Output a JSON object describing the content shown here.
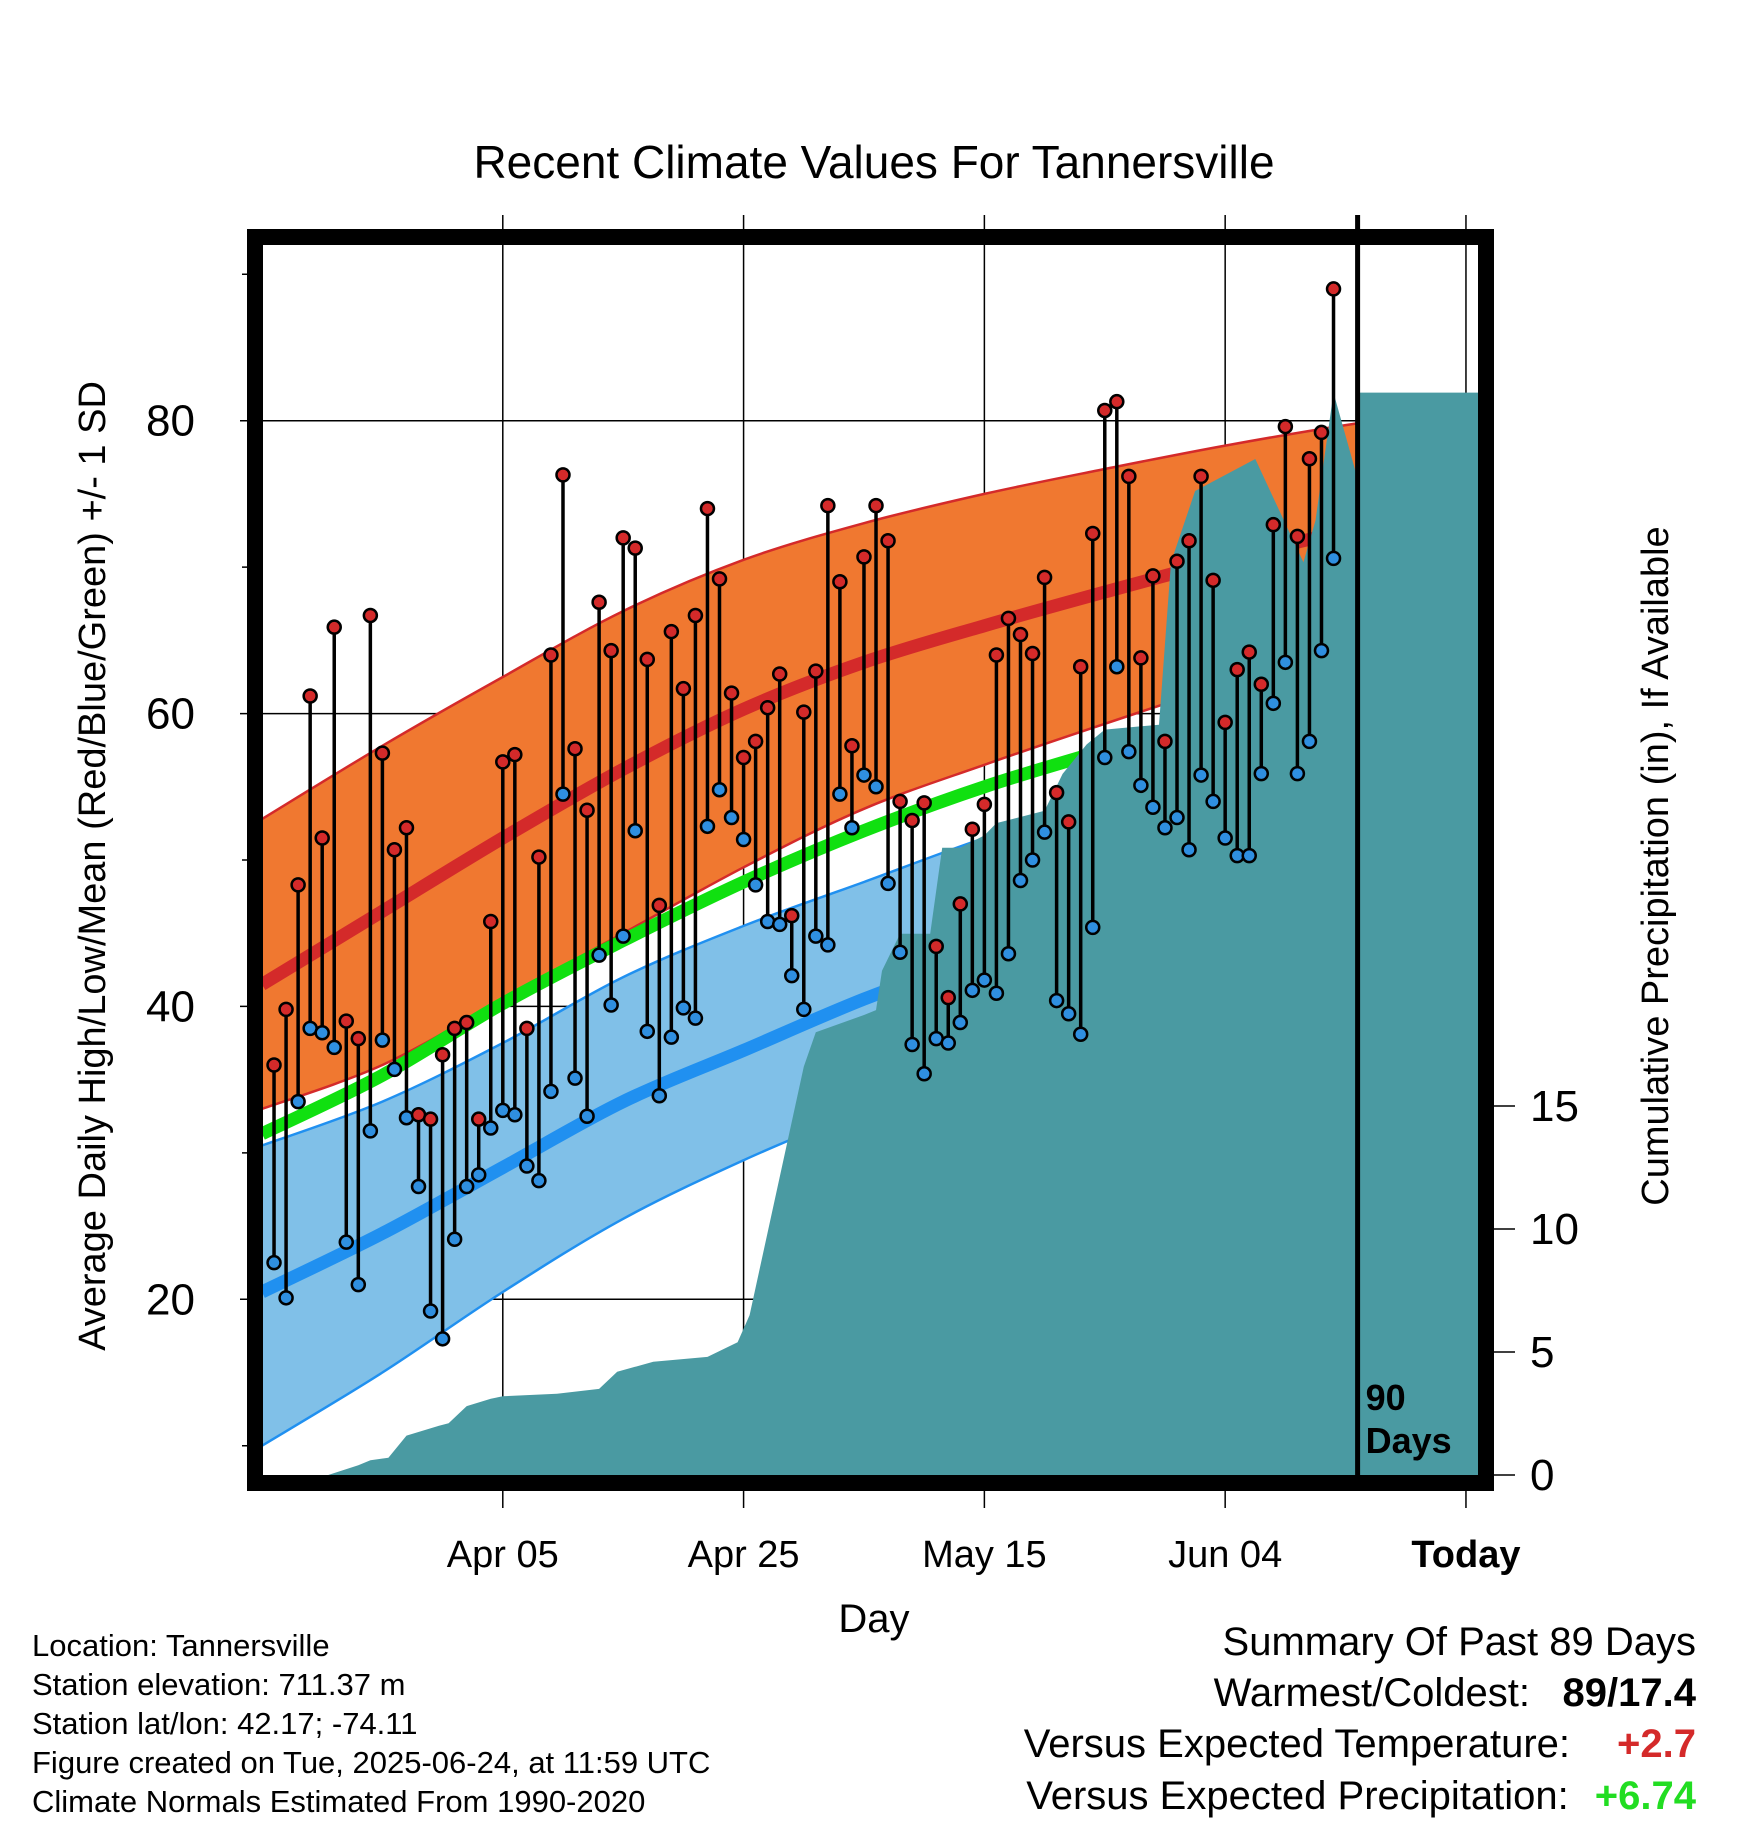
{
  "chart_data": {
    "type": "line",
    "title": "Recent Climate Values For Tannersville",
    "xlabel": "Day",
    "ylabel": "Average Daily High/Low/Mean (Red/Blue/Green) +/- 1 SD",
    "y2label": "Cumulative Precipitation (in), If Available",
    "x_tick_labels": [
      "Apr 05",
      "Apr 25",
      "May 15",
      "Jun 04",
      "Today"
    ],
    "y_ticks": [
      20,
      40,
      60,
      80
    ],
    "y2_ticks": [
      0,
      5,
      10,
      15
    ],
    "ylim": [
      8,
      92
    ],
    "y2lim": [
      0,
      50
    ],
    "xlim_days": [
      -91,
      10
    ],
    "today_annotation": "90 Days",
    "grid": true,
    "colors": {
      "high_band": "#f07830",
      "high_mean_line": "#d42a2a",
      "low_band": "#80c0e8",
      "low_mean_line": "#2090f0",
      "mean_line": "#10e010",
      "precip": "#4a9aa2",
      "high_marker": "#d42a2a",
      "low_marker": "#2f8fe0"
    },
    "normals": {
      "days": [
        -91,
        -81,
        -71,
        -61,
        -51,
        -41,
        -31,
        -21,
        -11,
        -1,
        10
      ],
      "normal_high": [
        41.5,
        46.5,
        51.5,
        56.2,
        60.3,
        63.5,
        66.0,
        68.3,
        70.5,
        72.5,
        74.8
      ],
      "normal_high_upper": [
        52.8,
        57.8,
        62.5,
        67.0,
        70.5,
        73.0,
        75.0,
        76.7,
        78.3,
        79.7,
        81.0
      ],
      "normal_high_lower": [
        33.0,
        36.0,
        40.5,
        45.0,
        49.5,
        53.5,
        56.5,
        59.3,
        62.0,
        64.5,
        68.3
      ],
      "normal_mean": [
        31.3,
        35.3,
        40.2,
        44.5,
        48.5,
        52.0,
        55.0,
        57.5,
        59.8,
        62.0,
        64.0
      ],
      "normal_low": [
        20.5,
        24.5,
        29.0,
        33.5,
        37.0,
        40.5,
        43.5,
        46.5,
        49.0,
        51.5,
        53.3
      ],
      "normal_low_upper": [
        30.5,
        33.5,
        37.5,
        42.0,
        45.5,
        48.5,
        51.5,
        54.0,
        56.2,
        58.0,
        59.3
      ],
      "normal_low_lower": [
        10.0,
        15.0,
        20.5,
        25.5,
        29.5,
        33.0,
        36.5,
        40.0,
        43.0,
        45.7,
        47.5
      ]
    },
    "daily_highs": [
      36,
      39.8,
      48.3,
      61.2,
      51.5,
      65.9,
      39,
      37.8,
      66.7,
      57.3,
      50.7,
      52.2,
      32.6,
      32.3,
      36.7,
      38.5,
      38.9,
      32.3,
      45.8,
      56.7,
      57.2,
      38.5,
      50.2,
      64,
      76.3,
      57.6,
      53.4,
      67.6,
      64.3,
      72,
      71.3,
      63.7,
      46.9,
      65.6,
      61.7,
      66.7,
      74,
      69.2,
      61.4,
      57,
      58.1,
      60.4,
      62.7,
      46.2,
      60.1,
      62.9,
      74.2,
      69,
      57.8,
      70.7,
      74.2,
      71.8,
      54,
      52.7,
      53.9,
      44.1,
      40.6,
      47,
      52.1,
      53.8,
      64,
      66.5,
      65.4,
      64.1,
      69.3,
      54.6,
      52.6,
      63.2,
      72.3,
      80.7,
      81.3,
      76.2,
      63.8,
      69.4,
      58.1,
      70.4,
      71.8,
      76.2,
      69.1,
      59.4,
      63,
      64.2,
      62,
      72.9,
      79.6,
      72.1,
      77.4,
      79.2,
      89
    ],
    "daily_lows": [
      22.5,
      20.1,
      33.5,
      38.5,
      38.2,
      37.2,
      23.9,
      21,
      31.5,
      37.7,
      35.7,
      32.4,
      27.7,
      19.2,
      17.3,
      24.1,
      27.7,
      28.5,
      31.7,
      32.9,
      32.6,
      29.1,
      28.1,
      34.2,
      54.5,
      35.1,
      32.5,
      43.5,
      40.1,
      44.8,
      52,
      38.3,
      33.9,
      37.9,
      39.9,
      39.2,
      52.3,
      54.8,
      52.9,
      51.4,
      48.3,
      45.8,
      45.6,
      42.1,
      39.8,
      44.8,
      44.2,
      54.5,
      52.2,
      55.8,
      55,
      48.4,
      43.7,
      37.4,
      35.4,
      37.8,
      37.5,
      38.9,
      41.1,
      41.8,
      40.9,
      43.6,
      48.6,
      50,
      51.9,
      40.4,
      39.5,
      38.1,
      45.4,
      57,
      63.2,
      57.4,
      55.1,
      53.6,
      52.2,
      52.9,
      50.7,
      55.8,
      54,
      51.5,
      50.3,
      50.3,
      55.9,
      60.7,
      63.5,
      55.9,
      58.1,
      64.3,
      70.6
    ],
    "precip_days": [
      -91,
      -85.5,
      -83,
      -82,
      -80.5,
      -79,
      -76.3,
      -75.5,
      -74,
      -72,
      -71,
      -66.5,
      -63,
      -61.5,
      -58.5,
      -54,
      -51.5,
      -50.5,
      -46,
      -45,
      -41,
      -40,
      -39.5,
      -38,
      -35.5,
      -34.5,
      -33,
      -31,
      -30,
      -26,
      -24.5,
      -22.5,
      -21,
      -16.5,
      -15.5,
      -4.5,
      -3.5,
      0,
      -13.5,
      -8.5,
      -2,
      0,
      10
    ],
    "precip_values": [
      0,
      0,
      0.4,
      0.6,
      0.7,
      1.6,
      2,
      2.1,
      2.8,
      3.1,
      3.2,
      3.3,
      3.5,
      4.2,
      4.6,
      4.8,
      5.4,
      6.5,
      16.6,
      18,
      18.7,
      18.9,
      20.5,
      22,
      22,
      25.5,
      25.5,
      26,
      26.5,
      27,
      28.5,
      29.7,
      30.3,
      30.5,
      37.1,
      37.1,
      38.8,
      40.5,
      40,
      41.3,
      44,
      44,
      44
    ],
    "precip_labels_note": "values in chart units (inches)"
  },
  "info": {
    "location": "Location: Tannersville",
    "elevation": "Station elevation: 711.37 m",
    "latlon": "Station lat/lon: 42.17; -74.11",
    "created": "Figure created on Tue, 2025-06-24, at 11:59 UTC",
    "normals": "Climate Normals Estimated From 1990-2020"
  },
  "summary": {
    "title": "Summary Of Past 89 Days",
    "warm_cold_label": "Warmest/Coldest:",
    "warm_cold_value": "89/17.4",
    "temp_label": "Versus Expected Temperature:",
    "temp_value": "+2.7",
    "temp_color": "#d42a2a",
    "precip_label": "Versus Expected Precipitation:",
    "precip_value": "+6.74",
    "precip_color": "#22dd22"
  }
}
